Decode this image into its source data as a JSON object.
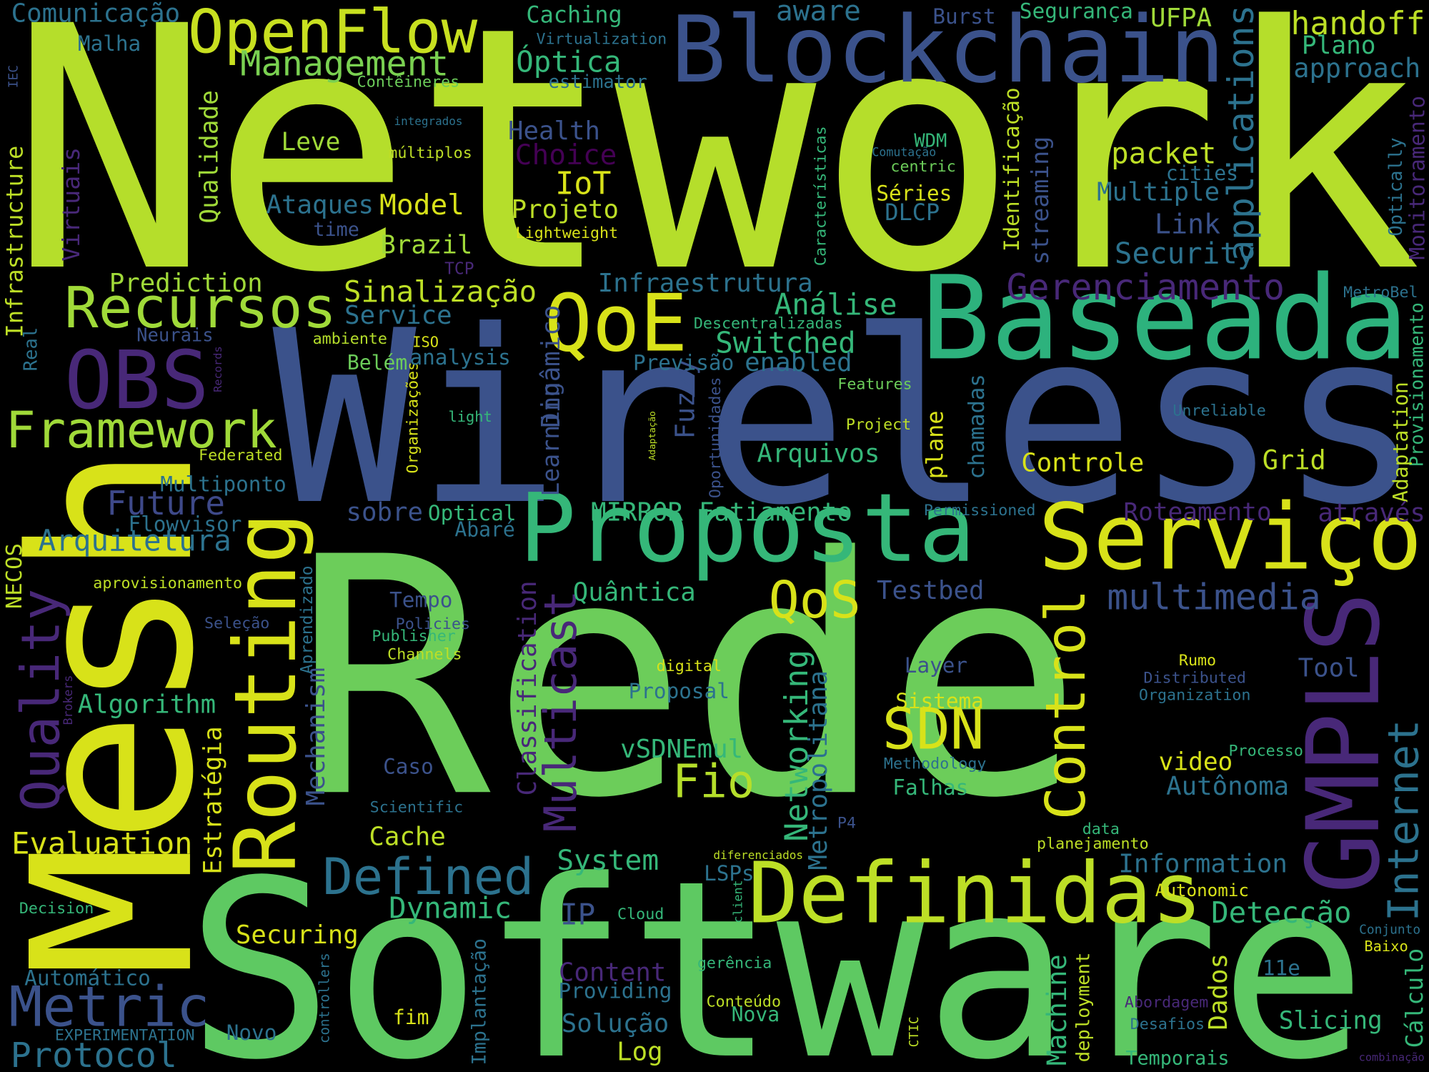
{
  "words": [
    {
      "text": "Network",
      "color": "#b5de2b"
    },
    {
      "text": "Rede",
      "color": "#6ccd5a"
    },
    {
      "text": "Wireless",
      "color": "#3b528b"
    },
    {
      "text": "Software",
      "color": "#5ec962"
    },
    {
      "text": "Mesh",
      "color": "#d8e219"
    },
    {
      "text": "Blockchain",
      "color": "#3b528b"
    },
    {
      "text": "OpenFlow",
      "color": "#c8e020"
    },
    {
      "text": "Baseada",
      "color": "#2db27d"
    },
    {
      "text": "Proposta",
      "color": "#35b779"
    },
    {
      "text": "Serviço",
      "color": "#d8e219"
    },
    {
      "text": "Definidas",
      "color": "#bddf26"
    },
    {
      "text": "Routing",
      "color": "#d8e219"
    },
    {
      "text": "GMPLS",
      "color": "#482878"
    },
    {
      "text": "Control",
      "color": "#d8e219"
    },
    {
      "text": "Recursos",
      "color": "#a0da39"
    },
    {
      "text": "Framework",
      "color": "#a0da39"
    },
    {
      "text": "QoE",
      "color": "#d8e219"
    },
    {
      "text": "OBS",
      "color": "#482878"
    },
    {
      "text": "SDN",
      "color": "#d8e219"
    },
    {
      "text": "QoS",
      "color": "#d8e219"
    },
    {
      "text": "Defined",
      "color": "#2c728e"
    },
    {
      "text": "Metric",
      "color": "#3b528b"
    },
    {
      "text": "Fio",
      "color": "#b5de2b"
    },
    {
      "text": "Internet",
      "color": "#2c728e"
    },
    {
      "text": "Multicast",
      "color": "#482878"
    },
    {
      "text": "Quality",
      "color": "#482878"
    },
    {
      "text": "Networking",
      "color": "#35b779"
    },
    {
      "text": "Metropolitana",
      "color": "#2c728e"
    },
    {
      "text": "Mechanism",
      "color": "#3b528b"
    },
    {
      "text": "Classification",
      "color": "#482878"
    },
    {
      "text": "Estratégia",
      "color": "#d8e219"
    },
    {
      "text": "Infrastructure",
      "color": "#bddf26"
    },
    {
      "text": "Virtuais",
      "color": "#482878"
    },
    {
      "text": "Qualidade",
      "color": "#a0da39"
    },
    {
      "text": "Fuzzy",
      "color": "#3b528b"
    },
    {
      "text": "Learning",
      "color": "#3b528b"
    },
    {
      "text": "Dinâmico",
      "color": "#3b528b"
    },
    {
      "text": "plane",
      "color": "#d8e219"
    },
    {
      "text": "chamadas",
      "color": "#2c728e"
    },
    {
      "text": "Identificação",
      "color": "#bddf26"
    },
    {
      "text": "streaming",
      "color": "#3b528b"
    },
    {
      "text": "applications",
      "color": "#2c728e"
    },
    {
      "text": "Características",
      "color": "#35b779"
    },
    {
      "text": "Optically",
      "color": "#2c728e"
    },
    {
      "text": "Monitoramento",
      "color": "#482878"
    },
    {
      "text": "IEC",
      "color": "#3b528b"
    },
    {
      "text": "Provisionamento",
      "color": "#35b779"
    },
    {
      "text": "Adaptation",
      "color": "#bddf26"
    },
    {
      "text": "Real",
      "color": "#2c728e"
    },
    {
      "text": "Records",
      "color": "#482878"
    },
    {
      "text": "Organizações",
      "color": "#d8e219"
    },
    {
      "text": "Oportunidades",
      "color": "#3b528b"
    },
    {
      "text": "Adaptação",
      "color": "#bddf26"
    },
    {
      "text": "Aprendizado",
      "color": "#2c728e"
    },
    {
      "text": "NECOS",
      "color": "#bddf26"
    },
    {
      "text": "Brokers",
      "color": "#482878"
    },
    {
      "text": "Implantação",
      "color": "#2c728e"
    },
    {
      "text": "controllers",
      "color": "#2c728e"
    },
    {
      "text": "client",
      "color": "#35b779"
    },
    {
      "text": "Machine",
      "color": "#35b779"
    },
    {
      "text": "deployment",
      "color": "#bddf26"
    },
    {
      "text": "Dados",
      "color": "#bddf26"
    },
    {
      "text": "Cálculo",
      "color": "#35b779"
    },
    {
      "text": "CTIC",
      "color": "#bddf26"
    },
    {
      "text": "Future",
      "color": "#3e4989"
    },
    {
      "text": "Arquitetura",
      "color": "#2c728e"
    },
    {
      "text": "Evaluation",
      "color": "#d8e219"
    },
    {
      "text": "Protocol",
      "color": "#2c728e"
    },
    {
      "text": "Algorithm",
      "color": "#35b779"
    },
    {
      "text": "Comunicação",
      "color": "#2c728e"
    },
    {
      "text": "Malha",
      "color": "#2c728e"
    },
    {
      "text": "Caching",
      "color": "#35b779"
    },
    {
      "text": "Management",
      "color": "#7ad151"
    },
    {
      "text": "Óptica",
      "color": "#35b779"
    },
    {
      "text": "Virtualization",
      "color": "#2c728e"
    },
    {
      "text": "aware",
      "color": "#2c728e"
    },
    {
      "text": "Burst",
      "color": "#3b528b"
    },
    {
      "text": "Segurança",
      "color": "#35b779"
    },
    {
      "text": "UFPA",
      "color": "#a0da39"
    },
    {
      "text": "handoff",
      "color": "#bddf26"
    },
    {
      "text": "Plano",
      "color": "#35b779"
    },
    {
      "text": "approach",
      "color": "#2c728e"
    },
    {
      "text": "Contêineres",
      "color": "#6ccd5a"
    },
    {
      "text": "estimator",
      "color": "#2c728e"
    },
    {
      "text": "integrados",
      "color": "#2c728e"
    },
    {
      "text": "Health",
      "color": "#3b528b"
    },
    {
      "text": "Choice",
      "color": "#440154"
    },
    {
      "text": "Leve",
      "color": "#a0da39"
    },
    {
      "text": "múltiplos",
      "color": "#bddf26"
    },
    {
      "text": "WDM",
      "color": "#35b779"
    },
    {
      "text": "Comutação",
      "color": "#2c728e"
    },
    {
      "text": "centric",
      "color": "#6ccd5a"
    },
    {
      "text": "packet",
      "color": "#bddf26"
    },
    {
      "text": "cities",
      "color": "#2c728e"
    },
    {
      "text": "Multiple",
      "color": "#2c728e"
    },
    {
      "text": "IoT",
      "color": "#d8e219"
    },
    {
      "text": "Model",
      "color": "#d8e219"
    },
    {
      "text": "Projeto",
      "color": "#bddf26"
    },
    {
      "text": "Ataques",
      "color": "#2c728e"
    },
    {
      "text": "time",
      "color": "#3b528b"
    },
    {
      "text": "Séries",
      "color": "#d8e219"
    },
    {
      "text": "DLCP",
      "color": "#2c728e"
    },
    {
      "text": "Lightweight",
      "color": "#d8e219"
    },
    {
      "text": "Brazil",
      "color": "#a0da39"
    },
    {
      "text": "Link",
      "color": "#3b528b"
    },
    {
      "text": "Security",
      "color": "#2c728e"
    },
    {
      "text": "TCP",
      "color": "#482878"
    },
    {
      "text": "Prediction",
      "color": "#a0da39"
    },
    {
      "text": "Infraestrutura",
      "color": "#2c728e"
    },
    {
      "text": "Sinalização",
      "color": "#bddf26"
    },
    {
      "text": "Gerenciamento",
      "color": "#482878"
    },
    {
      "text": "MetroBel",
      "color": "#2c728e"
    },
    {
      "text": "Análise",
      "color": "#35b779"
    },
    {
      "text": "Service",
      "color": "#2c728e"
    },
    {
      "text": "Neurais",
      "color": "#3b528b"
    },
    {
      "text": "ambiente",
      "color": "#b5de2b"
    },
    {
      "text": "ISO",
      "color": "#d8e219"
    },
    {
      "text": "Descentralizadas",
      "color": "#35b779"
    },
    {
      "text": "Switched",
      "color": "#35b779"
    },
    {
      "text": "analysis",
      "color": "#2c728e"
    },
    {
      "text": "Belém",
      "color": "#6ccd5a"
    },
    {
      "text": "Previsão",
      "color": "#2c728e"
    },
    {
      "text": "enabled",
      "color": "#2c728e"
    },
    {
      "text": "Features",
      "color": "#6ccd5a"
    },
    {
      "text": "light",
      "color": "#35b779"
    },
    {
      "text": "Unreliable",
      "color": "#2c728e"
    },
    {
      "text": "Project",
      "color": "#bddf26"
    },
    {
      "text": "Federated",
      "color": "#bddf26"
    },
    {
      "text": "Arquivos",
      "color": "#35b779"
    },
    {
      "text": "Controle",
      "color": "#d8e219"
    },
    {
      "text": "Grid",
      "color": "#bddf26"
    },
    {
      "text": "Multiponto",
      "color": "#2c728e"
    },
    {
      "text": "Flowvisor",
      "color": "#2c728e"
    },
    {
      "text": "sobre",
      "color": "#3b528b"
    },
    {
      "text": "Optical",
      "color": "#35b779"
    },
    {
      "text": "Abaré",
      "color": "#2c728e"
    },
    {
      "text": "MIRROR",
      "color": "#35b779"
    },
    {
      "text": "Fatiamento",
      "color": "#35b779"
    },
    {
      "text": "Permissioned",
      "color": "#2c728e"
    },
    {
      "text": "Roteamento",
      "color": "#482878"
    },
    {
      "text": "através",
      "color": "#482878"
    },
    {
      "text": "aprovisionamento",
      "color": "#bddf26"
    },
    {
      "text": "Quântica",
      "color": "#35b779"
    },
    {
      "text": "Testbed",
      "color": "#3b528b"
    },
    {
      "text": "Tempo",
      "color": "#3b528b"
    },
    {
      "text": "multimedia",
      "color": "#3b528b"
    },
    {
      "text": "Policies",
      "color": "#3b528b"
    },
    {
      "text": "Seleção",
      "color": "#3b528b"
    },
    {
      "text": "Publisher",
      "color": "#35b779"
    },
    {
      "text": "Channels",
      "color": "#bddf26"
    },
    {
      "text": "digital",
      "color": "#d8e219"
    },
    {
      "text": "Layer",
      "color": "#3b528b"
    },
    {
      "text": "Rumo",
      "color": "#d8e219"
    },
    {
      "text": "Tool",
      "color": "#3b528b"
    },
    {
      "text": "Distributed",
      "color": "#3b528b"
    },
    {
      "text": "Organization",
      "color": "#2c728e"
    },
    {
      "text": "Proposal",
      "color": "#2c728e"
    },
    {
      "text": "Sistema",
      "color": "#d8e219"
    },
    {
      "text": "Methodology",
      "color": "#2c728e"
    },
    {
      "text": "Processo",
      "color": "#35b779"
    },
    {
      "text": "vSDNEmul",
      "color": "#35b779"
    },
    {
      "text": "video",
      "color": "#d8e219"
    },
    {
      "text": "Caso",
      "color": "#3b528b"
    },
    {
      "text": "Autônoma",
      "color": "#2c728e"
    },
    {
      "text": "Falhas",
      "color": "#35b779"
    },
    {
      "text": "Scientific",
      "color": "#2c728e"
    },
    {
      "text": "P4",
      "color": "#3b528b"
    },
    {
      "text": "Cache",
      "color": "#bddf26"
    },
    {
      "text": "data",
      "color": "#35b779"
    },
    {
      "text": "planejamento",
      "color": "#bddf26"
    },
    {
      "text": "diferenciados",
      "color": "#bddf26"
    },
    {
      "text": "System",
      "color": "#35b779"
    },
    {
      "text": "Information",
      "color": "#2c728e"
    },
    {
      "text": "LSPs",
      "color": "#2c728e"
    },
    {
      "text": "Decision",
      "color": "#35b779"
    },
    {
      "text": "Dynamic",
      "color": "#35b779"
    },
    {
      "text": "Autonomic",
      "color": "#d8e219"
    },
    {
      "text": "IP",
      "color": "#3b528b"
    },
    {
      "text": "Cloud",
      "color": "#35b779"
    },
    {
      "text": "Detecção",
      "color": "#35b779"
    },
    {
      "text": "Conjunto",
      "color": "#2c728e"
    },
    {
      "text": "Securing",
      "color": "#d8e219"
    },
    {
      "text": "Baixo",
      "color": "#d8e219"
    },
    {
      "text": "11e",
      "color": "#2c728e"
    },
    {
      "text": "gerência",
      "color": "#35b779"
    },
    {
      "text": "Content",
      "color": "#482878"
    },
    {
      "text": "Automático",
      "color": "#2c728e"
    },
    {
      "text": "Providing",
      "color": "#2c728e"
    },
    {
      "text": "Conteúdo",
      "color": "#bddf26"
    },
    {
      "text": "Abordagem",
      "color": "#482878"
    },
    {
      "text": "Nova",
      "color": "#35b779"
    },
    {
      "text": "EXPERIMENTATION",
      "color": "#2c728e"
    },
    {
      "text": "Novo",
      "color": "#2c728e"
    },
    {
      "text": "fim",
      "color": "#d8e219"
    },
    {
      "text": "Solução",
      "color": "#2c728e"
    },
    {
      "text": "Slicing",
      "color": "#35b779"
    },
    {
      "text": "Desafios",
      "color": "#2c728e"
    },
    {
      "text": "Log",
      "color": "#bddf26"
    },
    {
      "text": "Temporais",
      "color": "#35b779"
    },
    {
      "text": "combinação",
      "color": "#482878"
    }
  ]
}
